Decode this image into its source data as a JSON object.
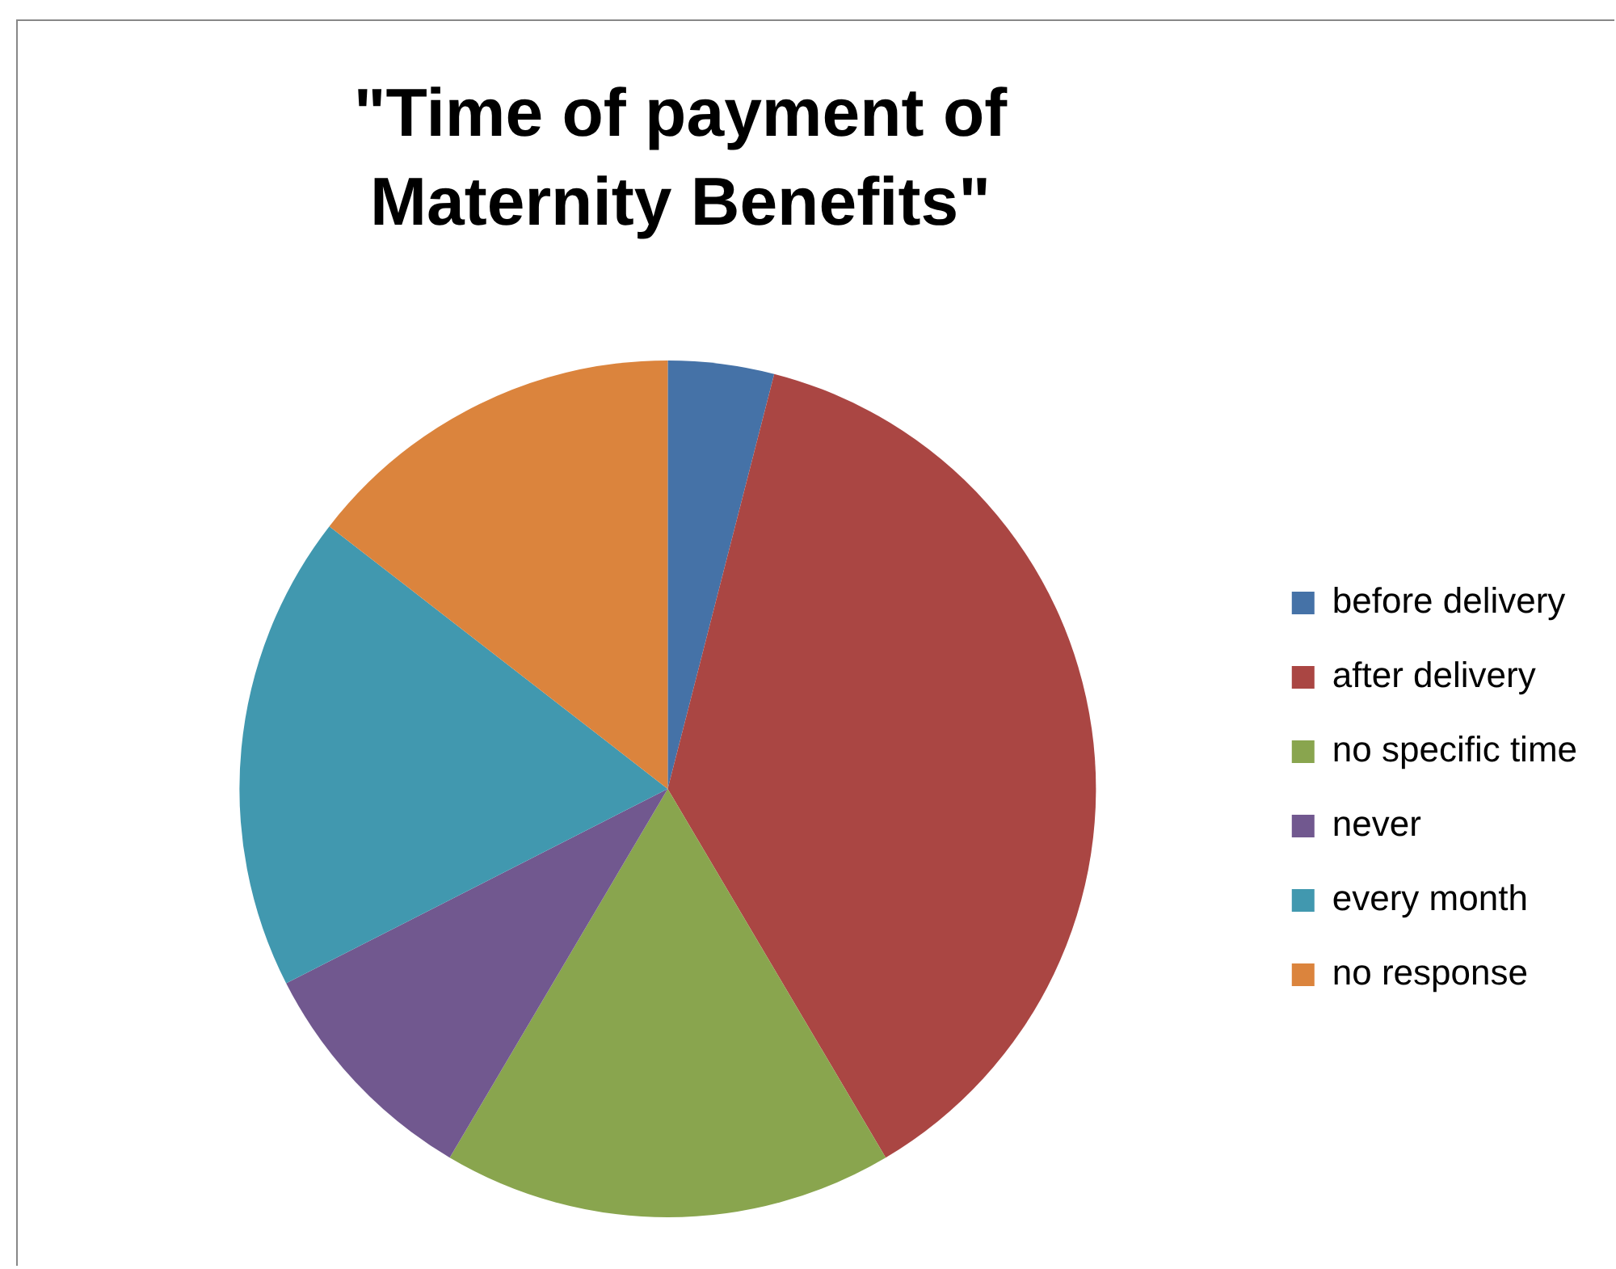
{
  "chart_data": {
    "type": "pie",
    "title": "\"Time of payment of Maternity Benefits\"",
    "categories": [
      "before delivery",
      "after delivery",
      "no specific time",
      "never",
      "every month",
      "no response"
    ],
    "values": [
      4,
      37.5,
      17,
      9,
      18,
      14.5
    ],
    "colors": [
      "#4572a7",
      "#aa4643",
      "#89a54e",
      "#71588f",
      "#4198af",
      "#db843d"
    ],
    "legend": "right"
  }
}
